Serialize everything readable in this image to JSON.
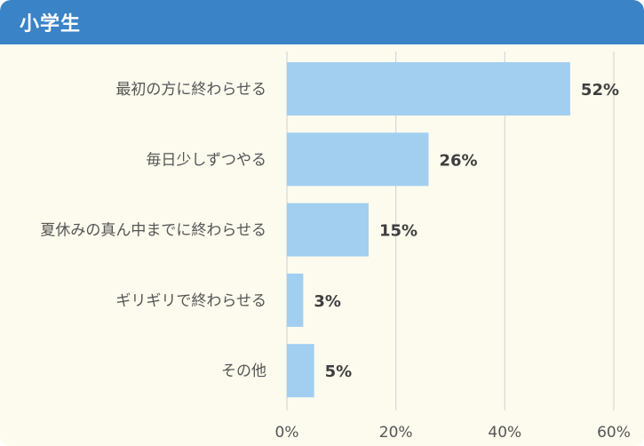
{
  "header": {
    "title": "小学生"
  },
  "chart_data": {
    "type": "bar",
    "orientation": "horizontal",
    "categories": [
      "最初の方に終わらせる",
      "毎日少しずつやる",
      "夏休みの真ん中までに終わらせる",
      "ギリギリで終わらせる",
      "その他"
    ],
    "values": [
      52,
      26,
      15,
      3,
      5
    ],
    "value_labels": [
      "52%",
      "26%",
      "15%",
      "3%",
      "5%"
    ],
    "xlim": [
      0,
      60
    ],
    "xticks": [
      0,
      20,
      40,
      60
    ],
    "xtick_labels": [
      "0%",
      "20%",
      "40%",
      "60%"
    ],
    "grid": true,
    "bar_color": "#a2cff0",
    "header_color": "#3a83c7",
    "background_color": "#fdfbee"
  }
}
